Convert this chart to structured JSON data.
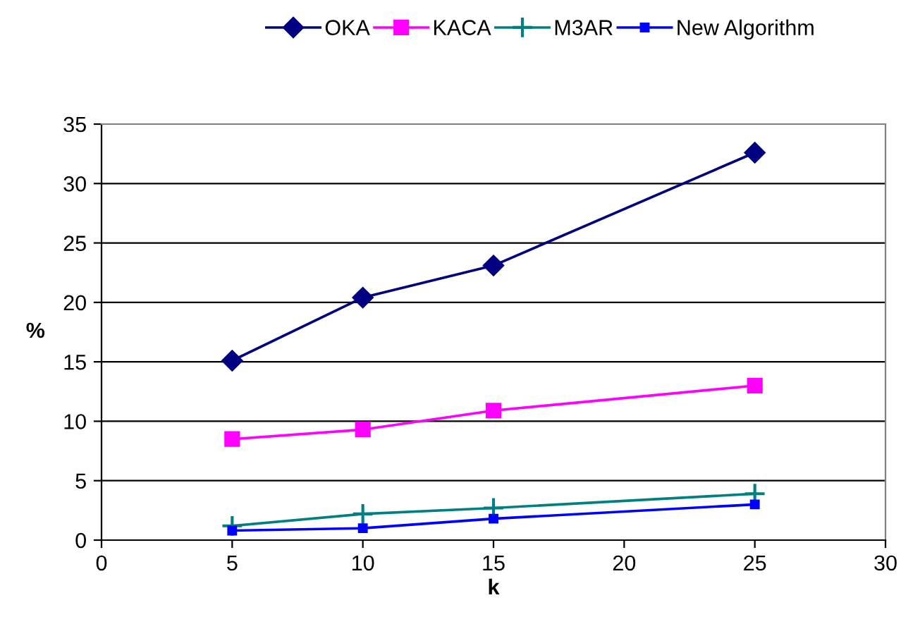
{
  "chart_data": {
    "type": "line",
    "xlabel": "k",
    "ylabel": "%",
    "x": [
      5,
      10,
      15,
      25
    ],
    "series": [
      {
        "name": "OKA",
        "color": "#000080",
        "marker": "diamond",
        "values": [
          15.1,
          20.4,
          23.1,
          32.6
        ]
      },
      {
        "name": "KACA",
        "color": "#ff00ff",
        "marker": "square",
        "values": [
          8.5,
          9.3,
          10.9,
          13.0
        ]
      },
      {
        "name": "M3AR",
        "color": "#008080",
        "marker": "cross",
        "values": [
          1.2,
          2.2,
          2.7,
          3.9
        ]
      },
      {
        "name": "New Algorithm",
        "color": "#0000ff",
        "marker": "square",
        "values": [
          0.8,
          1.0,
          1.8,
          3.0
        ]
      }
    ],
    "xlim": [
      0,
      30
    ],
    "xticks": [
      0,
      5,
      10,
      15,
      20,
      25,
      30
    ],
    "ylim": [
      0,
      35
    ],
    "yticks": [
      0,
      5,
      10,
      15,
      20,
      25,
      30,
      35
    ],
    "grid": "y",
    "legend": "top"
  }
}
